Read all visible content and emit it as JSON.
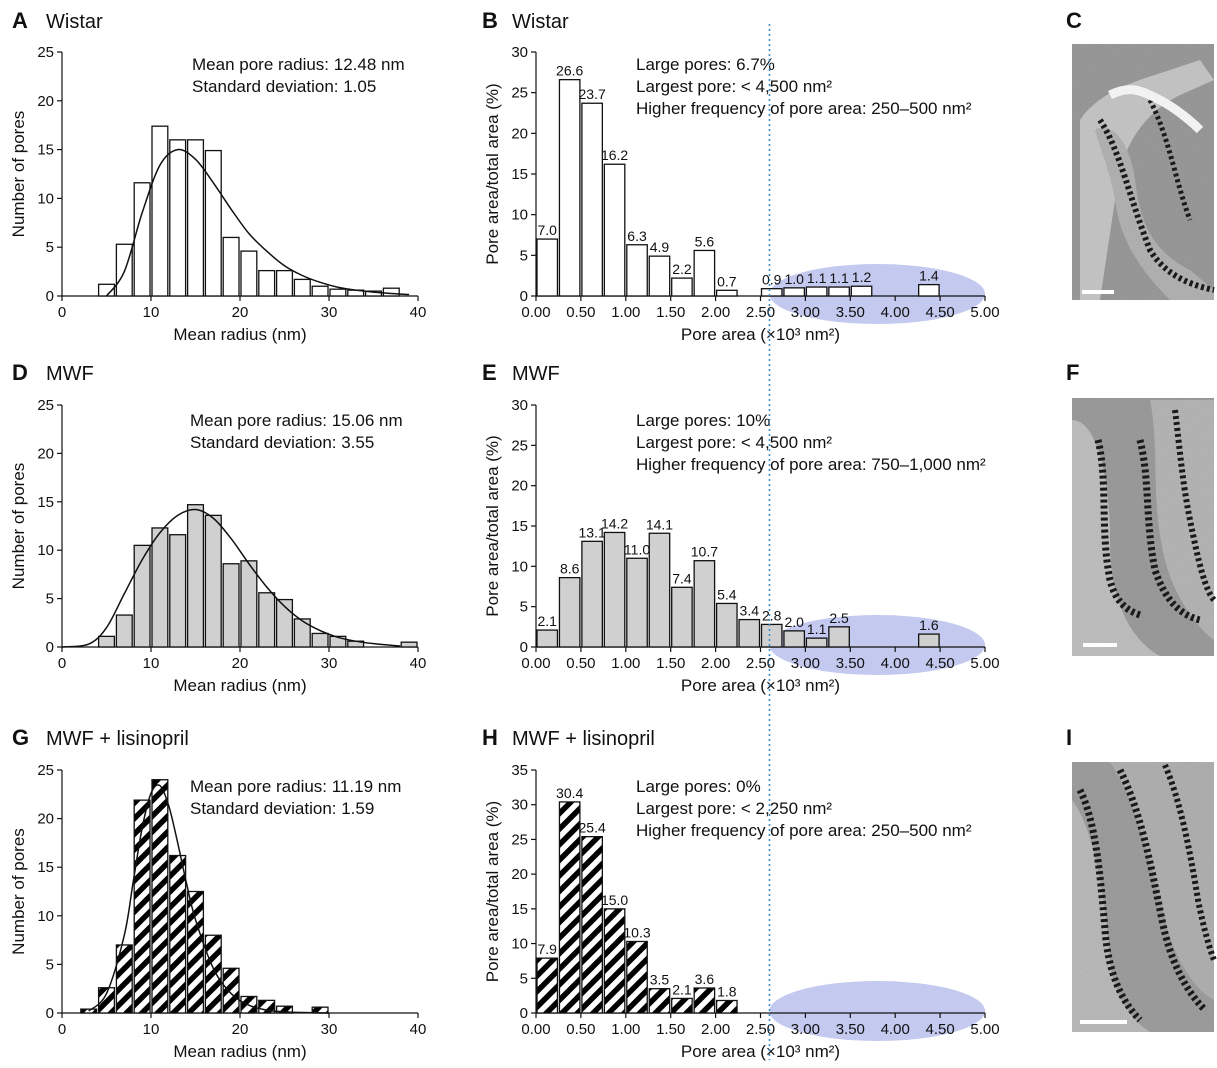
{
  "panels": {
    "A": {
      "letter": "A",
      "title": "Wistar",
      "ann1": "Mean pore radius: 12.48 nm",
      "ann2": "Standard deviation: 1.05"
    },
    "B": {
      "letter": "B",
      "title": "Wistar",
      "ann1": "Large pores: 6.7%",
      "ann2": "Largest pore: < 4,500 nm²",
      "ann3": "Higher frequency of pore area: 250–500 nm²"
    },
    "C": {
      "letter": "C"
    },
    "D": {
      "letter": "D",
      "title": "MWF",
      "ann1": "Mean pore radius: 15.06 nm",
      "ann2": "Standard deviation: 3.55"
    },
    "E": {
      "letter": "E",
      "title": "MWF",
      "ann1": "Large pores: 10%",
      "ann2": "Largest pore: < 4,500 nm²",
      "ann3": "Higher frequency of pore area: 750–1,000 nm²"
    },
    "F": {
      "letter": "F"
    },
    "G": {
      "letter": "G",
      "title": "MWF + lisinopril",
      "ann1": "Mean pore radius: 11.19 nm",
      "ann2": "Standard deviation: 1.59"
    },
    "H": {
      "letter": "H",
      "title": "MWF + lisinopril",
      "ann1": "Large pores: 0%",
      "ann2": "Largest pore: < 2,250 nm²",
      "ann3": "Higher frequency of pore area: 250–500 nm²"
    },
    "I": {
      "letter": "I"
    }
  },
  "colors": {
    "wistar_fill": "#ffffff",
    "mwf_fill": "#d0d0d0",
    "lisinopril_fill": "hatched",
    "highlight_ellipse": "#b8c0ec",
    "threshold_line": "#3a8fd0"
  },
  "chart_data": [
    {
      "type": "bar",
      "panel": "A",
      "xlabel": "Mean radius (nm)",
      "ylabel": "Number of pores",
      "xlim": [
        0,
        40
      ],
      "ylim": [
        0,
        25
      ],
      "xticks": [
        0,
        10,
        20,
        30,
        40
      ],
      "yticks": [
        0,
        5,
        10,
        15,
        20,
        25
      ],
      "bin_centers": [
        5,
        7,
        9,
        11,
        13,
        15,
        17,
        19,
        21,
        23,
        25,
        27,
        29,
        31,
        33,
        35,
        37
      ],
      "values": [
        1.2,
        5.3,
        11.6,
        17.4,
        16.0,
        16.0,
        14.9,
        6.0,
        4.6,
        2.6,
        2.6,
        1.7,
        1.0,
        0.7,
        0.6,
        0.5,
        0.8
      ],
      "fit_curve": {
        "x": [
          5,
          7,
          9,
          11,
          13,
          15,
          17,
          19,
          21,
          23,
          25,
          27,
          29,
          31,
          33,
          35,
          37,
          39
        ],
        "y": [
          0.0,
          2.5,
          8.5,
          13.4,
          15.0,
          14.0,
          11.6,
          8.9,
          6.4,
          4.6,
          3.1,
          2.1,
          1.4,
          0.9,
          0.6,
          0.4,
          0.25,
          0.15
        ]
      }
    },
    {
      "type": "bar",
      "panel": "B",
      "xlabel": "Pore area (×10³ nm²)",
      "ylabel": "Pore area/total area (%)",
      "xlim": [
        0,
        5
      ],
      "ylim": [
        0,
        30
      ],
      "xticks": [
        "0.00",
        "0.50",
        "1.00",
        "1.50",
        "2.00",
        "2.50",
        "3.00",
        "3.50",
        "4.00",
        "4.50",
        "5.00"
      ],
      "yticks": [
        0,
        5,
        10,
        15,
        20,
        25,
        30
      ],
      "bin_centers": [
        0.125,
        0.375,
        0.625,
        0.875,
        1.125,
        1.375,
        1.625,
        1.875,
        2.125,
        2.625,
        2.875,
        3.125,
        3.375,
        3.625,
        4.375
      ],
      "values": [
        7.0,
        26.6,
        23.7,
        16.2,
        6.3,
        4.9,
        2.2,
        5.6,
        0.7,
        0.9,
        1.0,
        1.1,
        1.1,
        1.2,
        1.4
      ],
      "labels": [
        "7.0",
        "26.6",
        "23.7",
        "16.2",
        "6.3",
        "4.9",
        "2.2",
        "5.6",
        "0.7",
        "0.9",
        "1.0",
        "1.1",
        "1.1",
        "1.2",
        "1.4"
      ],
      "threshold_x": 2.6,
      "highlight_range": [
        2.6,
        5.0
      ]
    },
    {
      "type": "bar",
      "panel": "D",
      "xlabel": "Mean radius (nm)",
      "ylabel": "Number of pores",
      "xlim": [
        0,
        40
      ],
      "ylim": [
        0,
        25
      ],
      "xticks": [
        0,
        10,
        20,
        30,
        40
      ],
      "yticks": [
        0,
        5,
        10,
        15,
        20,
        25
      ],
      "bin_centers": [
        5,
        7,
        9,
        11,
        13,
        15,
        17,
        19,
        21,
        23,
        25,
        27,
        29,
        31,
        33,
        39
      ],
      "values": [
        1.1,
        3.3,
        10.5,
        12.3,
        11.6,
        14.7,
        13.6,
        8.6,
        8.9,
        5.6,
        4.9,
        2.9,
        1.4,
        1.1,
        0.6,
        0.5
      ],
      "fit_curve": {
        "x": [
          0,
          3,
          5,
          7,
          9,
          11,
          13,
          15,
          17,
          19,
          21,
          23,
          25,
          27,
          29,
          31,
          33,
          35,
          38
        ],
        "y": [
          0.0,
          0.3,
          2.0,
          5.5,
          9.0,
          11.8,
          13.6,
          14.2,
          13.3,
          11.2,
          8.6,
          6.2,
          4.2,
          2.7,
          1.7,
          1.0,
          0.6,
          0.35,
          0.1
        ]
      }
    },
    {
      "type": "bar",
      "panel": "E",
      "xlabel": "Pore area (×10³ nm²)",
      "ylabel": "Pore area/total area (%)",
      "xlim": [
        0,
        5
      ],
      "ylim": [
        0,
        30
      ],
      "xticks": [
        "0.00",
        "0.50",
        "1.00",
        "1.50",
        "2.00",
        "2.50",
        "3.00",
        "3.50",
        "4.00",
        "4.50",
        "5.00"
      ],
      "yticks": [
        0,
        5,
        10,
        15,
        20,
        25,
        30
      ],
      "bin_centers": [
        0.125,
        0.375,
        0.625,
        0.875,
        1.125,
        1.375,
        1.625,
        1.875,
        2.125,
        2.375,
        2.625,
        2.875,
        3.125,
        3.375,
        4.375
      ],
      "values": [
        2.1,
        8.6,
        13.1,
        14.2,
        11.0,
        14.1,
        7.4,
        10.7,
        5.4,
        3.4,
        2.8,
        2.0,
        1.1,
        2.5,
        1.6
      ],
      "labels": [
        "2.1",
        "8.6",
        "13.1",
        "14.2",
        "11.0",
        "14.1",
        "7.4",
        "10.7",
        "5.4",
        "3.4",
        "2.8",
        "2.0",
        "1.1",
        "2.5",
        "1.6"
      ],
      "threshold_x": 2.6,
      "highlight_range": [
        2.6,
        5.0
      ]
    },
    {
      "type": "bar",
      "panel": "G",
      "xlabel": "Mean radius (nm)",
      "ylabel": "Number of pores",
      "xlim": [
        0,
        40
      ],
      "ylim": [
        0,
        25
      ],
      "xticks": [
        0,
        10,
        20,
        30,
        40
      ],
      "yticks": [
        0,
        5,
        10,
        15,
        20,
        25
      ],
      "bin_centers": [
        3,
        5,
        7,
        9,
        11,
        13,
        15,
        17,
        19,
        21,
        23,
        25,
        29
      ],
      "values": [
        0.4,
        2.6,
        7.0,
        21.9,
        24.0,
        16.2,
        12.5,
        8.0,
        4.6,
        1.7,
        1.3,
        0.7,
        0.6
      ],
      "fit_curve": {
        "x": [
          3,
          5,
          7,
          8,
          9,
          10,
          11,
          12,
          13,
          14,
          15,
          17,
          19,
          21,
          23,
          25,
          27,
          30
        ],
        "y": [
          0.2,
          2.0,
          8.0,
          13.5,
          19.0,
          22.6,
          23.4,
          21.3,
          17.5,
          13.3,
          9.6,
          4.6,
          2.0,
          0.8,
          0.3,
          0.12,
          0.05,
          0.0
        ]
      }
    },
    {
      "type": "bar",
      "panel": "H",
      "xlabel": "Pore area (×10³ nm²)",
      "ylabel": "Pore area/total area (%)",
      "xlim": [
        0,
        5
      ],
      "ylim": [
        0,
        35
      ],
      "xticks": [
        "0.00",
        "0.50",
        "1.00",
        "1.50",
        "2.00",
        "2.50",
        "3.00",
        "3.50",
        "4.00",
        "4.50",
        "5.00"
      ],
      "yticks": [
        0,
        5,
        10,
        15,
        20,
        25,
        30,
        35
      ],
      "bin_centers": [
        0.125,
        0.375,
        0.625,
        0.875,
        1.125,
        1.375,
        1.625,
        1.875,
        2.125
      ],
      "values": [
        7.9,
        30.4,
        25.4,
        15.0,
        10.3,
        3.5,
        2.1,
        3.6,
        1.8
      ],
      "labels": [
        "7.9",
        "30.4",
        "25.4",
        "15.0",
        "10.3",
        "3.5",
        "2.1",
        "3.6",
        "1.8"
      ],
      "threshold_x": 2.6,
      "highlight_range": [
        2.6,
        5.0
      ]
    }
  ]
}
